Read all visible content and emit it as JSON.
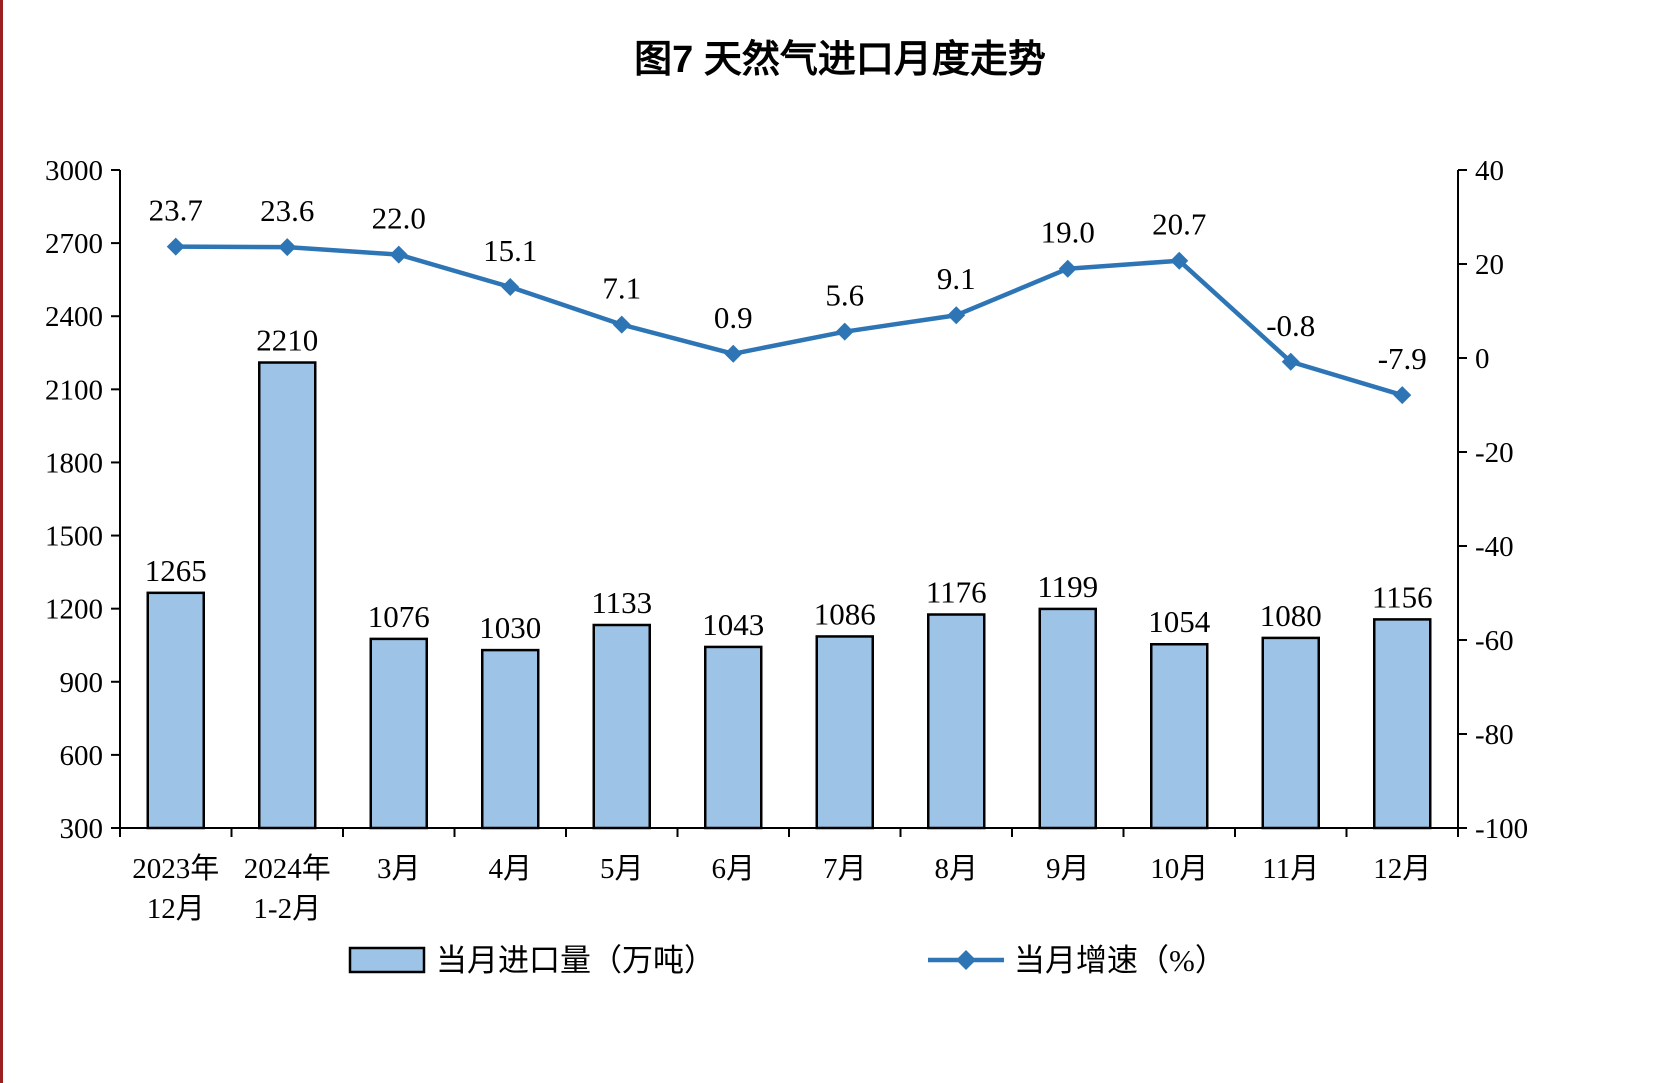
{
  "page": {
    "left_edge_color": "#9a1f1f"
  },
  "chart_data": {
    "type": "combo",
    "title": "图7 天然气进口月度走势",
    "categories": [
      "2023年\n12月",
      "2024年\n1-2月",
      "3月",
      "4月",
      "5月",
      "6月",
      "7月",
      "8月",
      "9月",
      "10月",
      "11月",
      "12月"
    ],
    "series": [
      {
        "name": "当月进口量（万吨）",
        "type": "bar",
        "axis": "left",
        "color": "#9DC3E6",
        "values": [
          1265,
          2210,
          1076,
          1030,
          1133,
          1043,
          1086,
          1176,
          1199,
          1054,
          1080,
          1156
        ]
      },
      {
        "name": "当月增速（%）",
        "type": "line",
        "axis": "right",
        "color": "#2E75B6",
        "values": [
          23.7,
          23.6,
          22.0,
          15.1,
          7.1,
          0.9,
          5.6,
          9.1,
          19.0,
          20.7,
          -0.8,
          -7.9
        ]
      }
    ],
    "left_axis": {
      "min": 300,
      "max": 3000,
      "step": 300
    },
    "right_axis": {
      "min": -100,
      "max": 40,
      "step": 20
    },
    "legend_position": "bottom",
    "grid": false
  }
}
